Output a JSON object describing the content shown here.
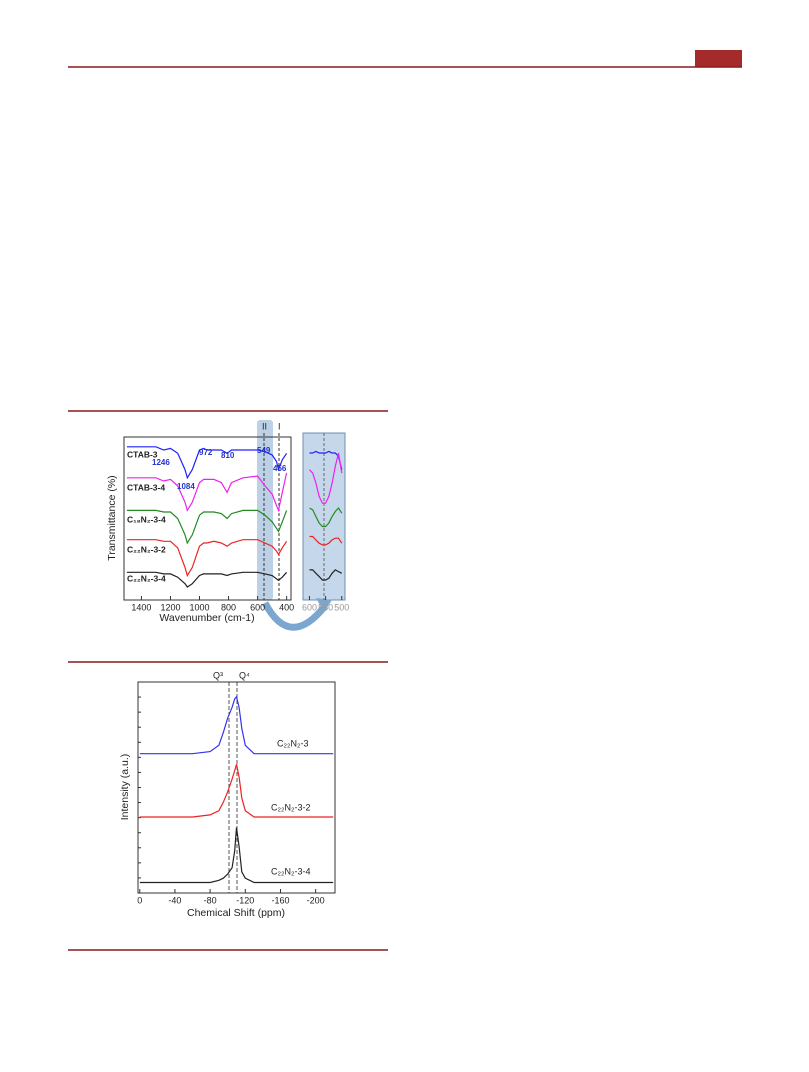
{
  "chart_data": [
    {
      "type": "line",
      "xlabel": "Wavenumber (cm-1)",
      "ylabel": "Transmittance (%)",
      "xlim": [
        1520,
        370
      ],
      "xticks": [
        1400,
        1200,
        1000,
        800,
        600,
        400
      ],
      "ylim": [
        0,
        100
      ],
      "x": [
        1500,
        1400,
        1300,
        1246,
        1200,
        1150,
        1100,
        1084,
        1050,
        1000,
        972,
        950,
        900,
        850,
        810,
        780,
        700,
        600,
        549,
        500,
        470,
        456,
        430,
        400
      ],
      "series": [
        {
          "name": "CTAB-3",
          "color": "#2020ff",
          "values": [
            94,
            94,
            94,
            92,
            93,
            90,
            80,
            75,
            80,
            92,
            93,
            92,
            92,
            92,
            90,
            92,
            92,
            92,
            91,
            89,
            85,
            80,
            86,
            90
          ]
        },
        {
          "name": "CTAB-3-4",
          "color": "#ee22ee",
          "values": [
            75,
            75,
            75,
            73,
            74,
            70,
            60,
            55,
            60,
            72,
            74,
            74,
            74,
            72,
            66,
            72,
            75,
            76,
            70,
            65,
            58,
            55,
            66,
            78
          ]
        },
        {
          "name": "C₁₈N₂-3-4",
          "color": "#228b22",
          "values": [
            55,
            55,
            55,
            54,
            54,
            50,
            40,
            35,
            40,
            52,
            54,
            54,
            54,
            53,
            50,
            53,
            55,
            55,
            52,
            48,
            44,
            42,
            48,
            55
          ]
        },
        {
          "name": "C₂₂N₂-3-2",
          "color": "#ee2222",
          "values": [
            37,
            37,
            37,
            36,
            36,
            32,
            20,
            15,
            20,
            33,
            35,
            35,
            36,
            35,
            33,
            35,
            37,
            37,
            35,
            33,
            30,
            28,
            32,
            36
          ]
        },
        {
          "name": "C₂₂N₂-3-4",
          "color": "#222222",
          "values": [
            17,
            17,
            17,
            16,
            16,
            14,
            10,
            8,
            10,
            15,
            16,
            16,
            16,
            16,
            15,
            16,
            17,
            17,
            16,
            15,
            13,
            12,
            14,
            17
          ]
        }
      ],
      "annotations": [
        "1246",
        "1084",
        "972",
        "810",
        "549",
        "456",
        "II",
        "I"
      ]
    },
    {
      "type": "line",
      "xlim": [
        620,
        490
      ],
      "xticks": [
        600,
        550,
        500
      ],
      "ylim": [
        0,
        100
      ],
      "x": [
        600,
        590,
        580,
        570,
        560,
        550,
        540,
        530,
        520,
        510,
        500
      ],
      "series": [
        {
          "color": "#2020ff",
          "values": [
            88,
            88,
            89,
            88,
            88,
            88,
            89,
            88,
            88,
            86,
            78
          ]
        },
        {
          "color": "#ee22ee",
          "values": [
            78,
            76,
            70,
            62,
            58,
            58,
            62,
            70,
            80,
            88,
            76
          ]
        },
        {
          "color": "#228b22",
          "values": [
            55,
            54,
            50,
            46,
            44,
            44,
            46,
            50,
            53,
            55,
            52
          ]
        },
        {
          "color": "#ee2222",
          "values": [
            38,
            38,
            36,
            34,
            33,
            33,
            34,
            36,
            37,
            37,
            34
          ]
        },
        {
          "color": "#222222",
          "values": [
            18,
            18,
            16,
            14,
            12,
            12,
            13,
            16,
            18,
            17,
            16
          ]
        }
      ]
    },
    {
      "type": "line",
      "xlabel": "Chemical Shift (ppm)",
      "ylabel": "Intensity (a.u.)",
      "xlim": [
        2,
        -222
      ],
      "xticks": [
        0,
        -40,
        -80,
        -120,
        -160,
        -200
      ],
      "ylim": [
        0,
        100
      ],
      "x": [
        0,
        -20,
        -40,
        -60,
        -80,
        -90,
        -95,
        -100,
        -105,
        -108,
        -110,
        -113,
        -116,
        -120,
        -130,
        -140,
        -160,
        -180,
        -200,
        -220
      ],
      "series": [
        {
          "name": "C₂₂N₂-3",
          "color": "#3333ee",
          "values": [
            66,
            66,
            66,
            66,
            67,
            70,
            76,
            83,
            88,
            92,
            93,
            88,
            78,
            70,
            66,
            66,
            66,
            66,
            66,
            66
          ]
        },
        {
          "name": "C₂₂N₂-3-2",
          "color": "#ee2222",
          "values": [
            36,
            36,
            36,
            36,
            37,
            39,
            43,
            48,
            54,
            58,
            61,
            55,
            45,
            39,
            36,
            36,
            36,
            36,
            36,
            36
          ]
        },
        {
          "name": "C₂₂N₂-3-4",
          "color": "#222222",
          "values": [
            5,
            5,
            5,
            5,
            5,
            6,
            7,
            9,
            12,
            20,
            31,
            22,
            10,
            7,
            5,
            5,
            5,
            5,
            5,
            5
          ]
        }
      ],
      "annotations": [
        "Q³",
        "Q⁴"
      ]
    }
  ]
}
